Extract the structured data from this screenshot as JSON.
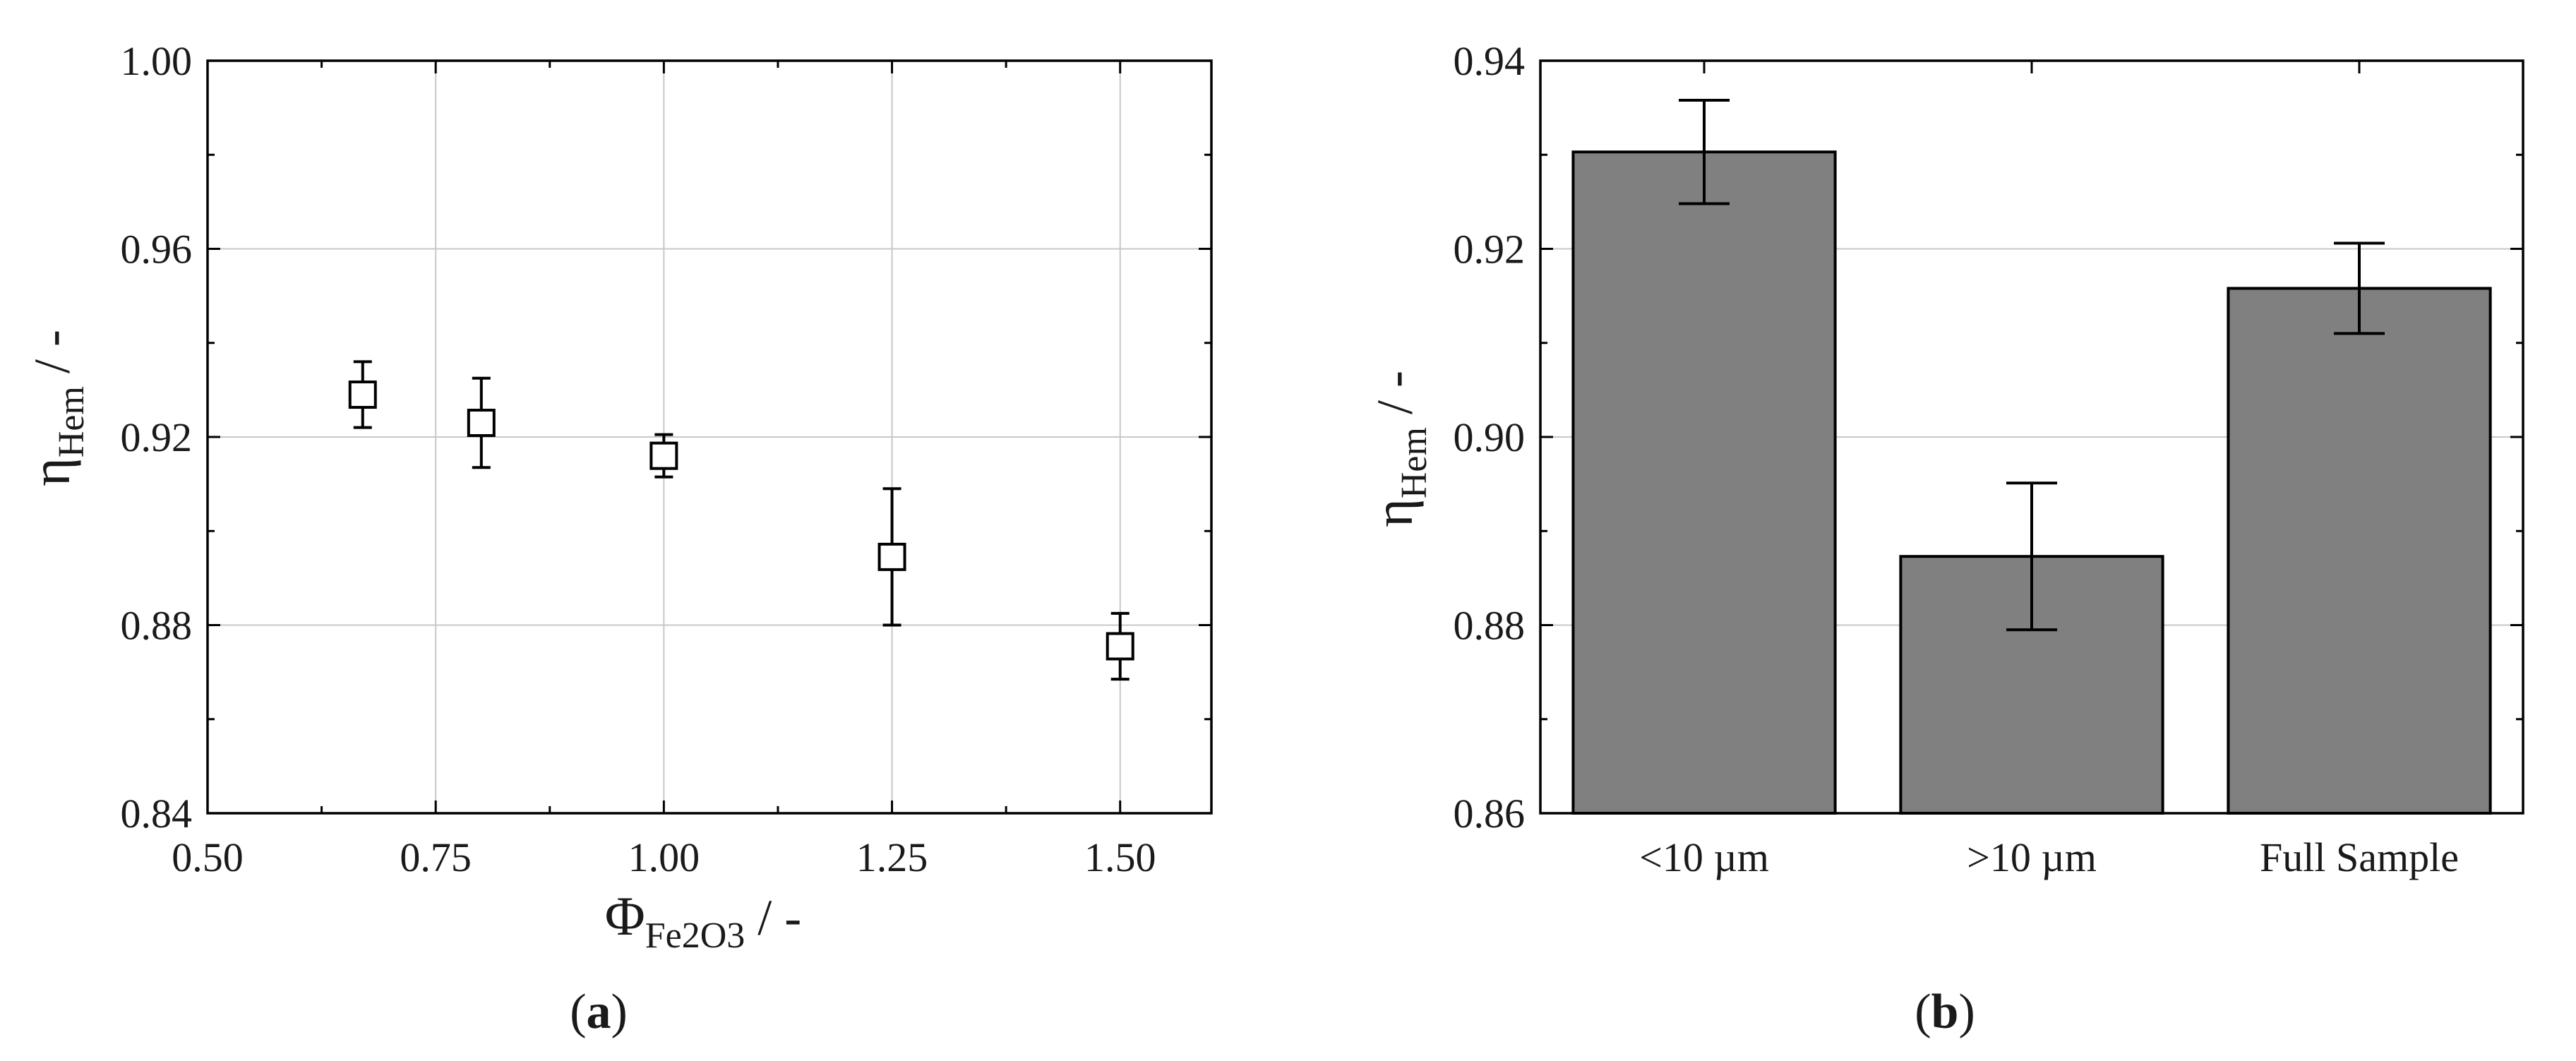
{
  "chart_data": [
    {
      "type": "scatter",
      "panel_label": "a",
      "xlabel_symbol": "Φ",
      "xlabel_sub": "Fe2O3",
      "xlabel_unit": " / -",
      "ylabel_symbol": "η",
      "ylabel_sub": "Hem",
      "ylabel_unit": " / -",
      "xlim": [
        0.5,
        1.6
      ],
      "ylim": [
        0.84,
        1.0
      ],
      "xticks": [
        0.5,
        0.75,
        1.0,
        1.25,
        1.5
      ],
      "xtick_labels": [
        "0.50",
        "0.75",
        "1.00",
        "1.25",
        "1.50"
      ],
      "yticks": [
        0.84,
        0.88,
        0.92,
        0.96,
        1.0
      ],
      "ytick_labels": [
        "0.84",
        "0.88",
        "0.92",
        "0.96",
        "1.00"
      ],
      "grid": true,
      "marker": "open-square",
      "points": [
        {
          "x": 0.67,
          "y": 0.929,
          "err": 0.007
        },
        {
          "x": 0.8,
          "y": 0.923,
          "err": 0.0095
        },
        {
          "x": 1.0,
          "y": 0.916,
          "err": 0.0045
        },
        {
          "x": 1.25,
          "y": 0.8945,
          "err": 0.0145
        },
        {
          "x": 1.5,
          "y": 0.8755,
          "err": 0.007
        }
      ]
    },
    {
      "type": "bar",
      "panel_label": "b",
      "ylabel_symbol": "η",
      "ylabel_sub": "Hem",
      "ylabel_unit": " / -",
      "categories": [
        "<10 µm",
        ">10 µm",
        "Full Sample"
      ],
      "values": [
        0.9303,
        0.8873,
        0.9158
      ],
      "errors": [
        0.0055,
        0.0078,
        0.0048
      ],
      "ylim": [
        0.86,
        0.94
      ],
      "yticks": [
        0.86,
        0.88,
        0.9,
        0.92,
        0.94
      ],
      "ytick_labels": [
        "0.86",
        "0.88",
        "0.90",
        "0.92",
        "0.94"
      ],
      "grid": true,
      "bar_color": "#808080"
    }
  ]
}
